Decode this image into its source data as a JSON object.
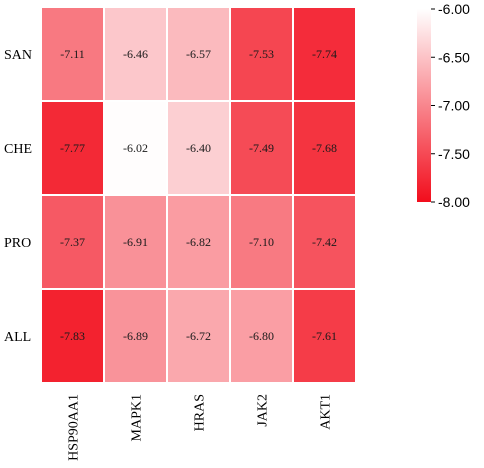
{
  "chart_data": {
    "type": "heatmap",
    "rows": [
      "SAN",
      "CHE",
      "PRO",
      "ALL"
    ],
    "columns": [
      "HSP90AA1",
      "MAPK1",
      "HRAS",
      "JAK2",
      "AKT1"
    ],
    "values": [
      [
        -7.11,
        -6.46,
        -6.57,
        -7.53,
        -7.74
      ],
      [
        -7.77,
        -6.02,
        -6.4,
        -7.49,
        -7.68
      ],
      [
        -7.37,
        -6.91,
        -6.82,
        -7.1,
        -7.42
      ],
      [
        -7.83,
        -6.89,
        -6.72,
        -6.8,
        -7.61
      ]
    ],
    "value_labels": [
      [
        "-7.11",
        "-6.46",
        "-6.57",
        "-7.53",
        "-7.74"
      ],
      [
        "-7.77",
        "-6.02",
        "-6.40",
        "-7.49",
        "-7.68"
      ],
      [
        "-7.37",
        "-6.91",
        "-6.82",
        "-7.10",
        "-7.42"
      ],
      [
        "-7.83",
        "-6.89",
        "-6.72",
        "-6.80",
        "-7.61"
      ]
    ],
    "colorbar": {
      "range": [
        -8.0,
        -6.0
      ],
      "ticks": [
        -6.0,
        -6.5,
        -7.0,
        -7.5,
        -8.0
      ],
      "tick_labels": [
        "-6.00",
        "-6.50",
        "-7.00",
        "-7.50",
        "-8.00"
      ],
      "colors": {
        "high": "#ffffff",
        "low": "#f20d1c"
      },
      "placement": "right"
    }
  }
}
